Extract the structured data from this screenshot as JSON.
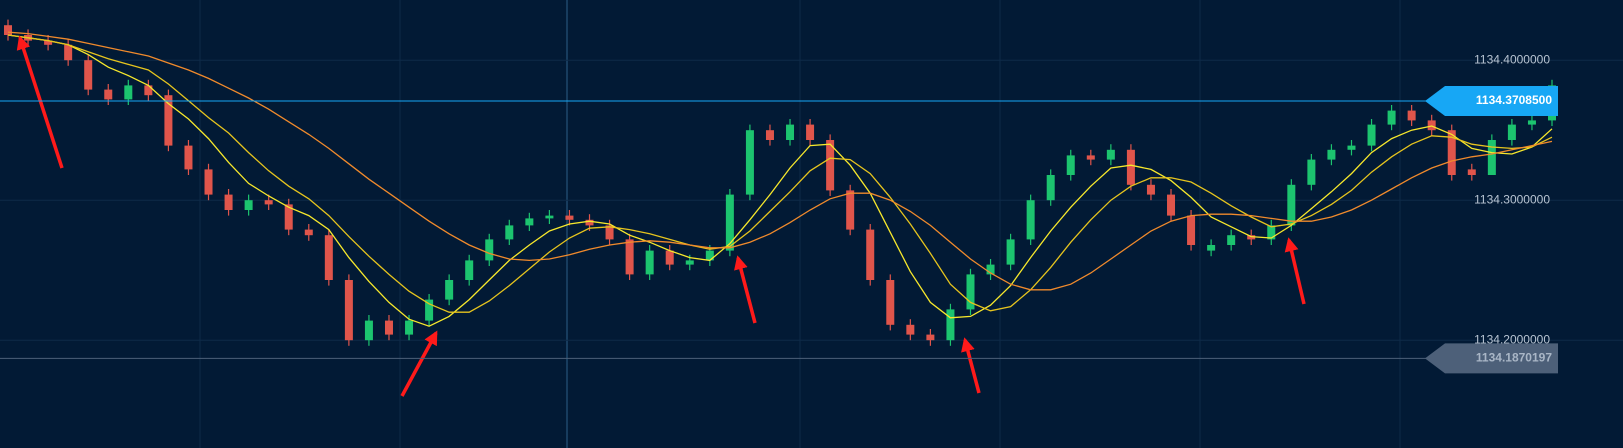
{
  "chart_data": {
    "type": "candlestick",
    "ylim": [
      1134.123,
      1134.443
    ],
    "yticks": [
      {
        "value": 1134.4,
        "label": "1134.4000000"
      },
      {
        "value": 1134.3,
        "label": "1134.3000000"
      },
      {
        "value": 1134.2,
        "label": "1134.2000000"
      }
    ],
    "grid": true,
    "up_color": "#1cc46f",
    "down_color": "#e0554b",
    "open": [
      1134.425,
      1134.418,
      1134.414,
      1134.411,
      1134.4,
      1134.379,
      1134.372,
      1134.382,
      1134.375,
      1134.339,
      1134.322,
      1134.304,
      1134.293,
      1134.3,
      1134.297,
      1134.279,
      1134.275,
      1134.243,
      1134.2,
      1134.214,
      1134.204,
      1134.214,
      1134.229,
      1134.243,
      1134.257,
      1134.272,
      1134.282,
      1134.287,
      1134.289,
      1134.286,
      1134.282,
      1134.272,
      1134.247,
      1134.264,
      1134.254,
      1134.257,
      1134.264,
      1134.304,
      1134.35,
      1134.343,
      1134.354,
      1134.343,
      1134.307,
      1134.279,
      1134.243,
      1134.211,
      1134.204,
      1134.2,
      1134.222,
      1134.247,
      1134.254,
      1134.272,
      1134.3,
      1134.318,
      1134.332,
      1134.329,
      1134.336,
      1134.311,
      1134.304,
      1134.289,
      1134.264,
      1134.268,
      1134.275,
      1134.272,
      1134.282,
      1134.311,
      1134.329,
      1134.336,
      1134.339,
      1134.354,
      1134.364,
      1134.357,
      1134.35,
      1134.322,
      1134.318,
      1134.343,
      1134.354,
      1134.357
    ],
    "high": [
      1134.429,
      1134.422,
      1134.418,
      1134.415,
      1134.404,
      1134.383,
      1134.386,
      1134.386,
      1134.379,
      1134.343,
      1134.326,
      1134.308,
      1134.304,
      1134.304,
      1134.301,
      1134.283,
      1134.279,
      1134.247,
      1134.218,
      1134.218,
      1134.218,
      1134.233,
      1134.247,
      1134.261,
      1134.276,
      1134.286,
      1134.291,
      1134.293,
      1134.293,
      1134.29,
      1134.286,
      1134.276,
      1134.268,
      1134.268,
      1134.261,
      1134.268,
      1134.308,
      1134.354,
      1134.354,
      1134.358,
      1134.358,
      1134.347,
      1134.311,
      1134.283,
      1134.247,
      1134.215,
      1134.208,
      1134.226,
      1134.251,
      1134.258,
      1134.276,
      1134.304,
      1134.322,
      1134.336,
      1134.336,
      1134.34,
      1134.34,
      1134.315,
      1134.308,
      1134.293,
      1134.272,
      1134.279,
      1134.279,
      1134.286,
      1134.315,
      1134.333,
      1134.34,
      1134.343,
      1134.358,
      1134.368,
      1134.368,
      1134.361,
      1134.354,
      1134.326,
      1134.347,
      1134.358,
      1134.361,
      1134.386
    ],
    "low": [
      1134.414,
      1134.41,
      1134.407,
      1134.396,
      1134.375,
      1134.368,
      1134.368,
      1134.371,
      1134.335,
      1134.318,
      1134.3,
      1134.289,
      1134.289,
      1134.293,
      1134.275,
      1134.271,
      1134.239,
      1134.196,
      1134.196,
      1134.2,
      1134.2,
      1134.21,
      1134.225,
      1134.239,
      1134.253,
      1134.268,
      1134.278,
      1134.283,
      1134.282,
      1134.278,
      1134.268,
      1134.243,
      1134.243,
      1134.25,
      1134.25,
      1134.253,
      1134.26,
      1134.3,
      1134.339,
      1134.339,
      1134.339,
      1134.303,
      1134.275,
      1134.239,
      1134.207,
      1134.2,
      1134.196,
      1134.196,
      1134.218,
      1134.243,
      1134.25,
      1134.268,
      1134.296,
      1134.314,
      1134.325,
      1134.325,
      1134.307,
      1134.3,
      1134.285,
      1134.264,
      1134.26,
      1134.264,
      1134.268,
      1134.268,
      1134.278,
      1134.307,
      1134.325,
      1134.332,
      1134.335,
      1134.35,
      1134.353,
      1134.346,
      1134.314,
      1134.314,
      1134.318,
      1134.339,
      1134.35,
      1134.353
    ],
    "close": [
      1134.418,
      1134.414,
      1134.411,
      1134.4,
      1134.379,
      1134.372,
      1134.382,
      1134.375,
      1134.339,
      1134.322,
      1134.304,
      1134.293,
      1134.3,
      1134.297,
      1134.279,
      1134.275,
      1134.243,
      1134.2,
      1134.214,
      1134.204,
      1134.214,
      1134.229,
      1134.243,
      1134.257,
      1134.272,
      1134.282,
      1134.287,
      1134.289,
      1134.286,
      1134.282,
      1134.272,
      1134.247,
      1134.264,
      1134.254,
      1134.257,
      1134.264,
      1134.304,
      1134.35,
      1134.343,
      1134.354,
      1134.343,
      1134.307,
      1134.279,
      1134.243,
      1134.211,
      1134.204,
      1134.2,
      1134.222,
      1134.247,
      1134.254,
      1134.272,
      1134.3,
      1134.318,
      1134.332,
      1134.329,
      1134.336,
      1134.311,
      1134.304,
      1134.289,
      1134.268,
      1134.268,
      1134.275,
      1134.272,
      1134.282,
      1134.311,
      1134.329,
      1134.336,
      1134.339,
      1134.354,
      1134.364,
      1134.357,
      1134.35,
      1134.318,
      1134.318,
      1134.343,
      1134.354,
      1134.357,
      1134.382
    ],
    "series": [
      {
        "color": "#f7e82c",
        "values": [
          1134.418,
          1134.416,
          1134.414,
          1134.411,
          1134.404,
          1134.395,
          1134.389,
          1134.382,
          1134.369,
          1134.358,
          1134.344,
          1134.327,
          1134.312,
          1134.303,
          1134.295,
          1134.289,
          1134.279,
          1134.259,
          1134.242,
          1134.227,
          1134.215,
          1134.21,
          1134.217,
          1134.229,
          1134.243,
          1134.257,
          1134.268,
          1134.278,
          1134.283,
          1134.285,
          1134.283,
          1134.275,
          1134.27,
          1134.264,
          1134.259,
          1134.257,
          1134.269,
          1134.286,
          1134.304,
          1134.323,
          1134.339,
          1134.34,
          1134.325,
          1134.305,
          1134.277,
          1134.249,
          1134.227,
          1134.216,
          1134.217,
          1134.225,
          1134.239,
          1134.259,
          1134.278,
          1134.295,
          1134.31,
          1134.323,
          1134.325,
          1134.322,
          1134.314,
          1134.302,
          1134.288,
          1134.281,
          1134.274,
          1134.273,
          1134.282,
          1134.294,
          1134.306,
          1134.319,
          1134.334,
          1134.344,
          1134.35,
          1134.353,
          1134.347,
          1134.337,
          1134.334,
          1134.333,
          1134.338,
          1134.351
        ]
      },
      {
        "color": "#e6c41e",
        "values": [
          1134.418,
          1134.416,
          1134.414,
          1134.411,
          1134.406,
          1134.401,
          1134.397,
          1134.393,
          1134.383,
          1134.371,
          1134.359,
          1134.348,
          1134.334,
          1134.321,
          1134.31,
          1134.301,
          1134.289,
          1134.274,
          1134.26,
          1134.247,
          1134.235,
          1134.226,
          1134.22,
          1134.22,
          1134.228,
          1134.239,
          1134.251,
          1134.263,
          1134.273,
          1134.28,
          1134.281,
          1134.279,
          1134.276,
          1134.272,
          1134.268,
          1134.265,
          1134.267,
          1134.278,
          1134.292,
          1134.306,
          1134.321,
          1134.33,
          1134.329,
          1134.319,
          1134.302,
          1134.283,
          1134.262,
          1134.24,
          1134.227,
          1134.221,
          1134.224,
          1134.236,
          1134.252,
          1134.27,
          1134.286,
          1134.3,
          1134.31,
          1134.316,
          1134.316,
          1134.313,
          1134.305,
          1134.296,
          1134.288,
          1134.281,
          1134.283,
          1134.289,
          1134.297,
          1134.307,
          1134.32,
          1134.331,
          1134.34,
          1134.346,
          1134.345,
          1134.34,
          1134.338,
          1134.337,
          1134.338,
          1134.345
        ]
      },
      {
        "color": "#f08a2c",
        "values": [
          1134.42,
          1134.419,
          1134.417,
          1134.415,
          1134.412,
          1134.409,
          1134.406,
          1134.403,
          1134.398,
          1134.393,
          1134.387,
          1134.38,
          1134.373,
          1134.365,
          1134.356,
          1134.347,
          1134.337,
          1134.326,
          1134.315,
          1134.305,
          1134.295,
          1134.285,
          1134.276,
          1134.268,
          1134.262,
          1134.258,
          1134.257,
          1134.258,
          1134.261,
          1134.265,
          1134.268,
          1134.27,
          1134.271,
          1134.27,
          1134.268,
          1134.266,
          1134.266,
          1134.27,
          1134.276,
          1134.284,
          1134.293,
          1134.301,
          1134.305,
          1134.305,
          1134.3,
          1134.292,
          1134.282,
          1134.27,
          1134.258,
          1134.248,
          1134.24,
          1134.236,
          1134.236,
          1134.24,
          1134.248,
          1134.258,
          1134.268,
          1134.278,
          1134.285,
          1134.289,
          1134.29,
          1134.29,
          1134.289,
          1134.287,
          1134.285,
          1134.285,
          1134.288,
          1134.293,
          1134.3,
          1134.308,
          1134.316,
          1134.323,
          1134.328,
          1134.331,
          1134.333,
          1134.336,
          1134.339,
          1134.342
        ]
      }
    ],
    "price_lines": [
      {
        "value": 1134.37085,
        "label": "1134.3708500",
        "color": "#17a7f5"
      },
      {
        "value": 1134.1870197,
        "label": "1134.1870197",
        "color": "#4d6079"
      }
    ]
  }
}
